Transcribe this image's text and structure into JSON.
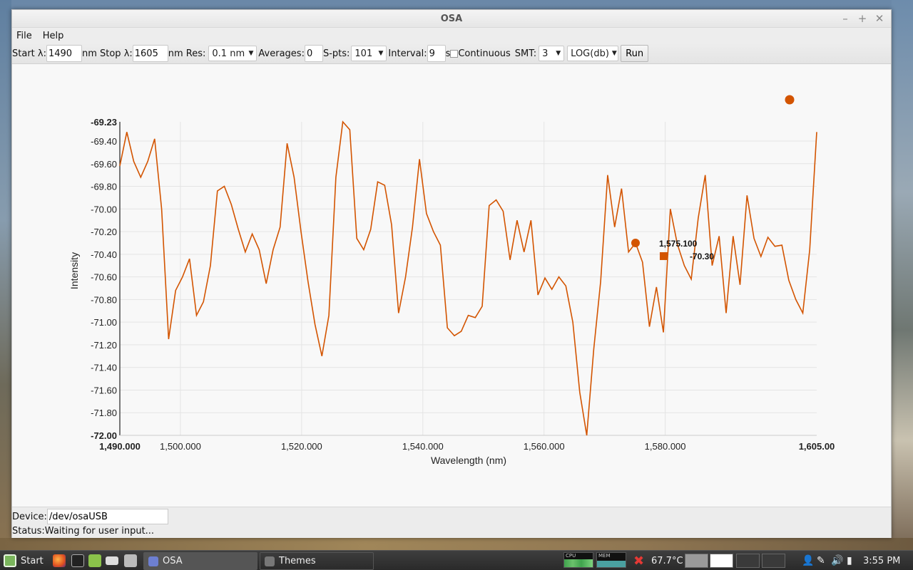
{
  "window": {
    "title": "OSA",
    "controls": {
      "minimize": "–",
      "maximize": "+",
      "close": "✕"
    }
  },
  "menu": {
    "file": "File",
    "help": "Help"
  },
  "toolbar": {
    "start_label": "Start λ:",
    "start_value": "1490",
    "stop_label": "nm Stop λ:",
    "stop_value": "1605",
    "res_label": "nm Res:",
    "res_value": "0.1 nm",
    "averages_label": "Averages:",
    "averages_value": "0",
    "spts_label": "S-pts:",
    "spts_value": "101",
    "interval_label": "Interval:",
    "interval_value": "9",
    "interval_unit": "s",
    "continuous_label": "Continuous",
    "continuous_checked": false,
    "smt_label": "SMT:",
    "smt_value": "3",
    "scale_value": "LOG(db)",
    "run_label": "Run"
  },
  "chart_data": {
    "type": "line",
    "xlabel": "Wavelength (nm)",
    "ylabel": "Intensity",
    "xlim": [
      1490,
      1605
    ],
    "ylim": [
      -72.0,
      -69.23
    ],
    "x_ticks": [
      1490,
      1500,
      1520,
      1540,
      1560,
      1580,
      1605
    ],
    "x_tick_labels": [
      "1,490.000",
      "1,500.000",
      "1,520.000",
      "1,540.000",
      "1,560.000",
      "1,580.000",
      "1,605.00"
    ],
    "y_ticks": [
      -69.23,
      -69.4,
      -69.6,
      -69.8,
      -70.0,
      -70.2,
      -70.4,
      -70.6,
      -70.8,
      -71.0,
      -71.2,
      -71.4,
      -71.6,
      -71.8,
      -72.0
    ],
    "y_tick_labels": [
      "-69.23",
      "-69.40",
      "-69.60",
      "-69.80",
      "-70.00",
      "-70.20",
      "-70.40",
      "-70.60",
      "-70.80",
      "-71.00",
      "-71.20",
      "-71.40",
      "-71.60",
      "-71.80",
      "-72.00"
    ],
    "grid": true,
    "color": "#d35400",
    "series": [
      {
        "x": [
          1490,
          1491.15,
          1492.3,
          1493.45,
          1494.6,
          1495.75,
          1496.9,
          1498.05,
          1499.2,
          1500.35,
          1501.5,
          1502.65,
          1503.8,
          1504.95,
          1506.1,
          1507.25,
          1508.4,
          1509.55,
          1510.7,
          1511.85,
          1513,
          1514.15,
          1515.3,
          1516.45,
          1517.6,
          1518.75,
          1519.9,
          1521.05,
          1522.2,
          1523.35,
          1524.5,
          1525.65,
          1526.8,
          1527.95,
          1529.1,
          1530.25,
          1531.4,
          1532.55,
          1533.7,
          1534.85,
          1536,
          1537.15,
          1538.3,
          1539.45,
          1540.6,
          1541.75,
          1542.9,
          1544.05,
          1545.2,
          1546.35,
          1547.5,
          1548.65,
          1549.8,
          1550.95,
          1552.1,
          1553.25,
          1554.4,
          1555.55,
          1556.7,
          1557.85,
          1559,
          1560.15,
          1561.3,
          1562.45,
          1563.6,
          1564.75,
          1565.9,
          1567.05,
          1568.2,
          1569.35,
          1570.5,
          1571.65,
          1572.8,
          1573.95,
          1575.1,
          1576.25,
          1577.4,
          1578.55,
          1579.7,
          1580.85,
          1582,
          1583.15,
          1584.3,
          1585.45,
          1586.6,
          1587.75,
          1588.9,
          1590.05,
          1591.2,
          1592.35,
          1593.5,
          1594.65,
          1595.8,
          1596.95,
          1598.1,
          1599.25,
          1600.4,
          1601.55,
          1602.7,
          1603.85,
          1605
        ],
        "y": [
          -69.62,
          -69.32,
          -69.58,
          -69.72,
          -69.58,
          -69.38,
          -70.0,
          -71.15,
          -70.72,
          -70.6,
          -70.44,
          -70.94,
          -70.82,
          -70.5,
          -69.84,
          -69.8,
          -69.96,
          -70.18,
          -70.38,
          -70.22,
          -70.36,
          -70.66,
          -70.36,
          -70.16,
          -69.42,
          -69.72,
          -70.2,
          -70.64,
          -71.02,
          -71.3,
          -70.94,
          -69.72,
          -69.23,
          -69.3,
          -70.26,
          -70.36,
          -70.18,
          -69.76,
          -69.79,
          -70.14,
          -70.92,
          -70.6,
          -70.16,
          -69.56,
          -70.04,
          -70.2,
          -70.32,
          -71.05,
          -71.12,
          -71.08,
          -70.94,
          -70.96,
          -70.86,
          -69.97,
          -69.92,
          -70.02,
          -70.45,
          -70.1,
          -70.38,
          -70.1,
          -70.76,
          -70.61,
          -70.71,
          -70.6,
          -70.68,
          -71.0,
          -71.62,
          -72.0,
          -71.24,
          -70.64,
          -69.7,
          -70.16,
          -69.82,
          -70.38,
          -70.3,
          -70.47,
          -71.04,
          -70.69,
          -71.09,
          -70.0,
          -70.31,
          -70.5,
          -70.62,
          -70.08,
          -69.7,
          -70.5,
          -70.24,
          -70.92,
          -70.24,
          -70.67,
          -69.88,
          -70.26,
          -70.42,
          -70.25,
          -70.33,
          -70.32,
          -70.63,
          -70.8,
          -70.92,
          -70.36,
          -69.32
        ]
      }
    ],
    "tooltip": {
      "x_label": "1,575.100",
      "y_label": "-70.30",
      "x": 1575.1,
      "y": -70.3
    },
    "legend_marker": {
      "position": "top-right"
    }
  },
  "status": {
    "device_label": "Device:",
    "device_value": "/dev/osaUSB",
    "status_text": "Status:Waiting for user input..."
  },
  "taskbar": {
    "start_label": "Start",
    "tasks": [
      "OSA",
      "Themes"
    ],
    "cpu_label": "CPU",
    "mem_label": "MEM",
    "temperature": "67.7°C",
    "clock": "3:55 PM"
  }
}
